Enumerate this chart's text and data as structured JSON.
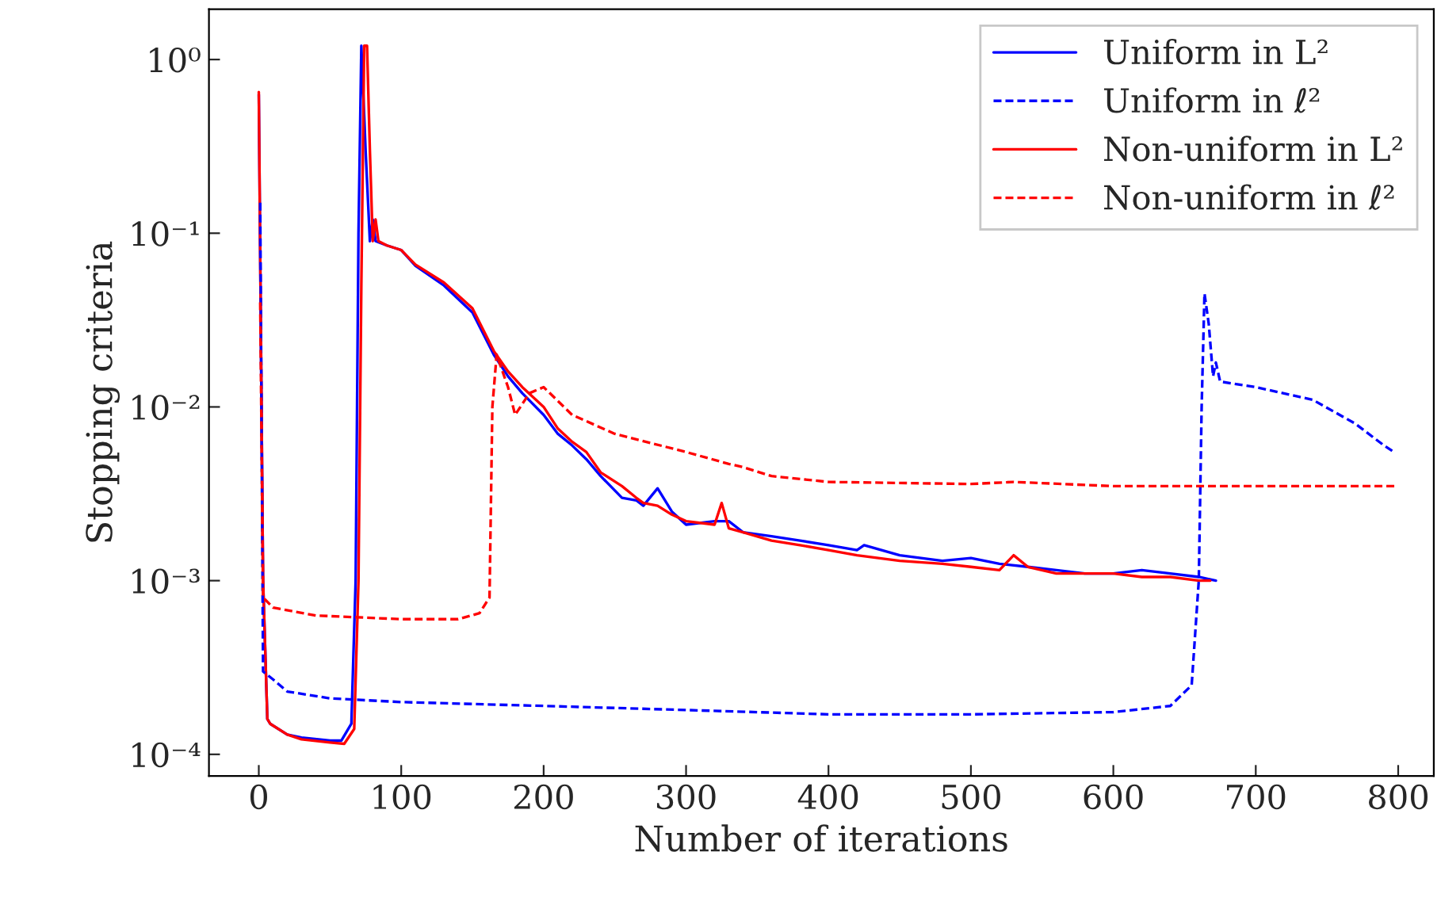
{
  "chart_data": {
    "type": "line",
    "xlabel": "Number of iterations",
    "ylabel": "Stopping criteria",
    "log": "y",
    "grid": false,
    "legend": "top right",
    "xlim": [
      -35,
      825
    ],
    "ylim": [
      7.5e-05,
      1.95
    ],
    "xticks": [
      0,
      100,
      200,
      300,
      400,
      500,
      600,
      700,
      800
    ],
    "yticks": [
      {
        "value": 0.0001,
        "label": "10⁻⁴"
      },
      {
        "value": 0.001,
        "label": "10⁻³"
      },
      {
        "value": 0.01,
        "label": "10⁻²"
      },
      {
        "value": 0.1,
        "label": "10⁻¹"
      },
      {
        "value": 1,
        "label": "10⁰"
      }
    ],
    "series": [
      {
        "name": "Uniform in L²",
        "color": "#0000ff",
        "line_style": "solid",
        "x": [
          0,
          3,
          6,
          8,
          20,
          30,
          50,
          58,
          65,
          68,
          70,
          72,
          75,
          78,
          80,
          82,
          90,
          100,
          110,
          130,
          150,
          165,
          175,
          185,
          200,
          210,
          220,
          230,
          240,
          255,
          265,
          270,
          280,
          290,
          300,
          320,
          330,
          340,
          360,
          380,
          400,
          420,
          425,
          450,
          480,
          500,
          520,
          540,
          560,
          580,
          600,
          620,
          640,
          660,
          672
        ],
        "values": [
          0.63,
          0.001,
          0.00016,
          0.00015,
          0.00013,
          0.000125,
          0.00012,
          0.00012,
          0.00015,
          0.001,
          0.1,
          1.2,
          0.3,
          0.09,
          0.12,
          0.09,
          0.085,
          0.08,
          0.065,
          0.05,
          0.035,
          0.02,
          0.015,
          0.012,
          0.009,
          0.007,
          0.006,
          0.005,
          0.004,
          0.003,
          0.0029,
          0.0027,
          0.0034,
          0.0025,
          0.0021,
          0.0022,
          0.0022,
          0.0019,
          0.0018,
          0.0017,
          0.0016,
          0.0015,
          0.0016,
          0.0014,
          0.0013,
          0.00135,
          0.00125,
          0.0012,
          0.00115,
          0.0011,
          0.0011,
          0.00115,
          0.0011,
          0.00105,
          0.001
        ]
      },
      {
        "name": "Uniform in ℓ²",
        "color": "#0000ff",
        "line_style": "dashed",
        "x": [
          1,
          3,
          10,
          20,
          50,
          100,
          200,
          300,
          400,
          500,
          600,
          640,
          655,
          660,
          662,
          664,
          667,
          670,
          672,
          675,
          700,
          740,
          770,
          790,
          797
        ],
        "values": [
          0.15,
          0.0003,
          0.00027,
          0.00023,
          0.00021,
          0.0002,
          0.00019,
          0.00018,
          0.00017,
          0.00017,
          0.000175,
          0.00019,
          0.00025,
          0.001,
          0.01,
          0.045,
          0.03,
          0.015,
          0.018,
          0.014,
          0.013,
          0.011,
          0.008,
          0.006,
          0.0055
        ]
      },
      {
        "name": "Non-uniform in L²",
        "color": "#ff0000",
        "line_style": "solid",
        "x": [
          0,
          3,
          6,
          8,
          20,
          30,
          50,
          60,
          67,
          70,
          72,
          74,
          76,
          78,
          80,
          82,
          84,
          90,
          100,
          110,
          130,
          150,
          165,
          175,
          185,
          200,
          210,
          220,
          230,
          240,
          255,
          265,
          270,
          280,
          290,
          300,
          320,
          325,
          330,
          340,
          360,
          380,
          400,
          420,
          450,
          480,
          500,
          520,
          530,
          540,
          560,
          580,
          600,
          620,
          640,
          660,
          668
        ],
        "values": [
          0.65,
          0.001,
          0.00016,
          0.00015,
          0.00013,
          0.000122,
          0.000117,
          0.000115,
          0.00014,
          0.001,
          0.05,
          1.2,
          1.2,
          0.3,
          0.09,
          0.12,
          0.09,
          0.085,
          0.08,
          0.066,
          0.052,
          0.037,
          0.021,
          0.016,
          0.013,
          0.01,
          0.0075,
          0.0063,
          0.0055,
          0.0042,
          0.0035,
          0.003,
          0.0028,
          0.0027,
          0.0024,
          0.0022,
          0.0021,
          0.0028,
          0.002,
          0.0019,
          0.0017,
          0.0016,
          0.0015,
          0.0014,
          0.0013,
          0.00125,
          0.0012,
          0.00115,
          0.0014,
          0.0012,
          0.0011,
          0.0011,
          0.0011,
          0.00105,
          0.00105,
          0.001,
          0.001
        ]
      },
      {
        "name": "Non-uniform in ℓ²",
        "color": "#ff0000",
        "line_style": "dashed",
        "x": [
          1,
          3,
          10,
          40,
          100,
          140,
          155,
          162,
          164,
          167,
          175,
          180,
          190,
          200,
          220,
          250,
          300,
          330,
          340,
          360,
          400,
          500,
          530,
          600,
          700,
          800
        ],
        "values": [
          0.04,
          0.0008,
          0.0007,
          0.00063,
          0.0006,
          0.0006,
          0.00065,
          0.0008,
          0.01,
          0.02,
          0.013,
          0.009,
          0.012,
          0.013,
          0.009,
          0.007,
          0.0055,
          0.0047,
          0.0045,
          0.004,
          0.0037,
          0.0036,
          0.0037,
          0.0035,
          0.0035,
          0.0035
        ]
      }
    ]
  }
}
